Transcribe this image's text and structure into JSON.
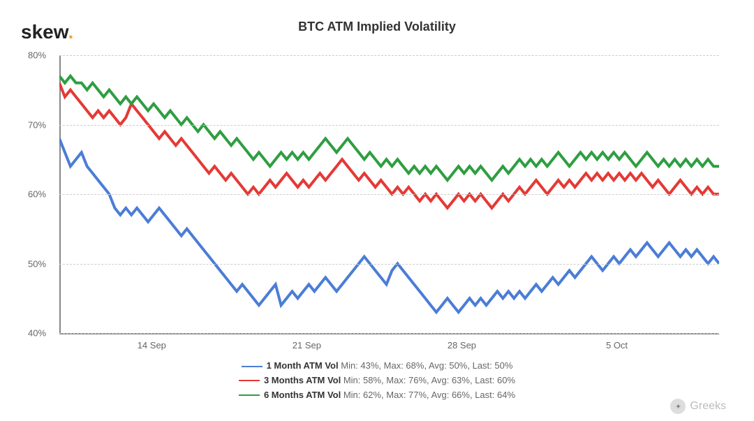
{
  "logo": {
    "text": "skew",
    "dot": "."
  },
  "title": "BTC ATM Implied Volatility",
  "chart": {
    "type": "line",
    "ylim": [
      40,
      80
    ],
    "yticks": [
      40,
      50,
      60,
      70,
      80
    ],
    "ytick_labels": [
      "40%",
      "50%",
      "60%",
      "70%",
      "80%"
    ],
    "xticks": [
      0.14,
      0.375,
      0.61,
      0.845
    ],
    "xtick_labels": [
      "14 Sep",
      "21 Sep",
      "28 Sep",
      "5 Oct"
    ],
    "background_color": "#ffffff",
    "grid_color": "#cccccc",
    "axis_color": "#888888",
    "series": [
      {
        "id": "1m",
        "name": "1 Month ATM Vol",
        "color": "#4a7dd6",
        "stats": {
          "min": "43%",
          "max": "68%",
          "avg": "50%",
          "last": "50%"
        },
        "data": [
          68,
          66,
          64,
          65,
          66,
          64,
          63,
          62,
          61,
          60,
          58,
          57,
          58,
          57,
          58,
          57,
          56,
          57,
          58,
          57,
          56,
          55,
          54,
          55,
          54,
          53,
          52,
          51,
          50,
          49,
          48,
          47,
          46,
          47,
          46,
          45,
          44,
          45,
          46,
          47,
          44,
          45,
          46,
          45,
          46,
          47,
          46,
          47,
          48,
          47,
          46,
          47,
          48,
          49,
          50,
          51,
          50,
          49,
          48,
          47,
          49,
          50,
          49,
          48,
          47,
          46,
          45,
          44,
          43,
          44,
          45,
          44,
          43,
          44,
          45,
          44,
          45,
          44,
          45,
          46,
          45,
          46,
          45,
          46,
          45,
          46,
          47,
          46,
          47,
          48,
          47,
          48,
          49,
          48,
          49,
          50,
          51,
          50,
          49,
          50,
          51,
          50,
          51,
          52,
          51,
          52,
          53,
          52,
          51,
          52,
          53,
          52,
          51,
          52,
          51,
          52,
          51,
          50,
          51,
          50
        ]
      },
      {
        "id": "3m",
        "name": "3 Months ATM Vol",
        "color": "#e53935",
        "stats": {
          "min": "58%",
          "max": "76%",
          "avg": "63%",
          "last": "60%"
        },
        "data": [
          76,
          74,
          75,
          74,
          73,
          72,
          71,
          72,
          71,
          72,
          71,
          70,
          71,
          73,
          72,
          71,
          70,
          69,
          68,
          69,
          68,
          67,
          68,
          67,
          66,
          65,
          64,
          63,
          64,
          63,
          62,
          63,
          62,
          61,
          60,
          61,
          60,
          61,
          62,
          61,
          62,
          63,
          62,
          61,
          62,
          61,
          62,
          63,
          62,
          63,
          64,
          65,
          64,
          63,
          62,
          63,
          62,
          61,
          62,
          61,
          60,
          61,
          60,
          61,
          60,
          59,
          60,
          59,
          60,
          59,
          58,
          59,
          60,
          59,
          60,
          59,
          60,
          59,
          58,
          59,
          60,
          59,
          60,
          61,
          60,
          61,
          62,
          61,
          60,
          61,
          62,
          61,
          62,
          61,
          62,
          63,
          62,
          63,
          62,
          63,
          62,
          63,
          62,
          63,
          62,
          63,
          62,
          61,
          62,
          61,
          60,
          61,
          62,
          61,
          60,
          61,
          60,
          61,
          60,
          60
        ]
      },
      {
        "id": "6m",
        "name": "6 Months ATM Vol",
        "color": "#2e9e41",
        "stats": {
          "min": "62%",
          "max": "77%",
          "avg": "66%",
          "last": "64%"
        },
        "data": [
          77,
          76,
          77,
          76,
          76,
          75,
          76,
          75,
          74,
          75,
          74,
          73,
          74,
          73,
          74,
          73,
          72,
          73,
          72,
          71,
          72,
          71,
          70,
          71,
          70,
          69,
          70,
          69,
          68,
          69,
          68,
          67,
          68,
          67,
          66,
          65,
          66,
          65,
          64,
          65,
          66,
          65,
          66,
          65,
          66,
          65,
          66,
          67,
          68,
          67,
          66,
          67,
          68,
          67,
          66,
          65,
          66,
          65,
          64,
          65,
          64,
          65,
          64,
          63,
          64,
          63,
          64,
          63,
          64,
          63,
          62,
          63,
          64,
          63,
          64,
          63,
          64,
          63,
          62,
          63,
          64,
          63,
          64,
          65,
          64,
          65,
          64,
          65,
          64,
          65,
          66,
          65,
          64,
          65,
          66,
          65,
          66,
          65,
          66,
          65,
          66,
          65,
          66,
          65,
          64,
          65,
          66,
          65,
          64,
          65,
          64,
          65,
          64,
          65,
          64,
          65,
          64,
          65,
          64,
          64
        ]
      }
    ]
  },
  "legend_label": {
    "min": "Min",
    "max": "Max",
    "avg": "Avg",
    "last": "Last"
  },
  "watermark": "Greeks"
}
